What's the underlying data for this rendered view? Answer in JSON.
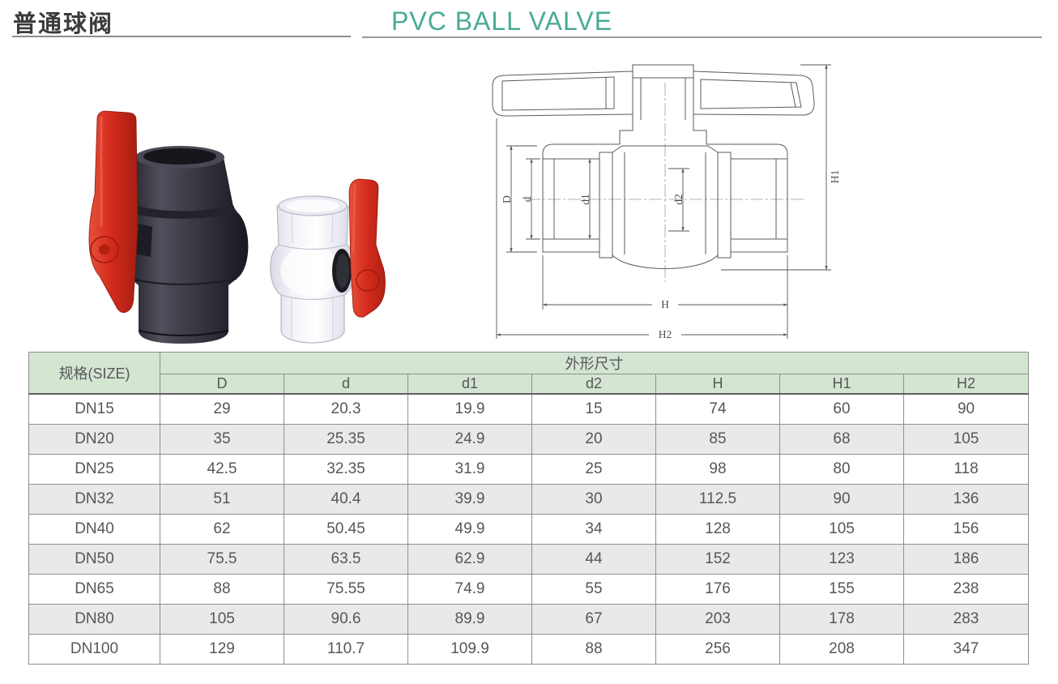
{
  "header": {
    "title_cn": "普通球阀",
    "title_en": "PVC BALL VALVE"
  },
  "diagram": {
    "dim_labels": {
      "D": "D",
      "d": "d",
      "d1": "d1",
      "d2": "d2",
      "H": "H",
      "H1": "H1",
      "H2": "H2"
    }
  },
  "photos": {
    "dark_valve": "pvc-ball-valve-dark-body-red-handle",
    "clear_valve": "pvc-ball-valve-transparent-body-red-handle"
  },
  "table": {
    "size_header": "规格(SIZE)",
    "group_header": "外形尺寸",
    "columns": [
      "D",
      "d",
      "d1",
      "d2",
      "H",
      "H1",
      "H2"
    ],
    "rows": [
      {
        "size": "DN15",
        "values": [
          "29",
          "20.3",
          "19.9",
          "15",
          "74",
          "60",
          "90"
        ]
      },
      {
        "size": "DN20",
        "values": [
          "35",
          "25.35",
          "24.9",
          "20",
          "85",
          "68",
          "105"
        ]
      },
      {
        "size": "DN25",
        "values": [
          "42.5",
          "32.35",
          "31.9",
          "25",
          "98",
          "80",
          "118"
        ]
      },
      {
        "size": "DN32",
        "values": [
          "51",
          "40.4",
          "39.9",
          "30",
          "112.5",
          "90",
          "136"
        ]
      },
      {
        "size": "DN40",
        "values": [
          "62",
          "50.45",
          "49.9",
          "34",
          "128",
          "105",
          "156"
        ]
      },
      {
        "size": "DN50",
        "values": [
          "75.5",
          "63.5",
          "62.9",
          "44",
          "152",
          "123",
          "186"
        ]
      },
      {
        "size": "DN65",
        "values": [
          "88",
          "75.55",
          "74.9",
          "55",
          "176",
          "155",
          "238"
        ]
      },
      {
        "size": "DN80",
        "values": [
          "105",
          "90.6",
          "89.9",
          "67",
          "203",
          "178",
          "283"
        ]
      },
      {
        "size": "DN100",
        "values": [
          "129",
          "110.7",
          "109.9",
          "88",
          "256",
          "208",
          "347"
        ]
      }
    ]
  },
  "colors": {
    "accent_teal": "#49ab96",
    "table_header_bg": "#d4e5d1",
    "row_alt_bg": "#e9e9e9",
    "border_gray": "#8f8f8f",
    "handle_red": "#d32b1c",
    "valve_dark": "#34343e",
    "drawing_line": "#5a5a64"
  }
}
